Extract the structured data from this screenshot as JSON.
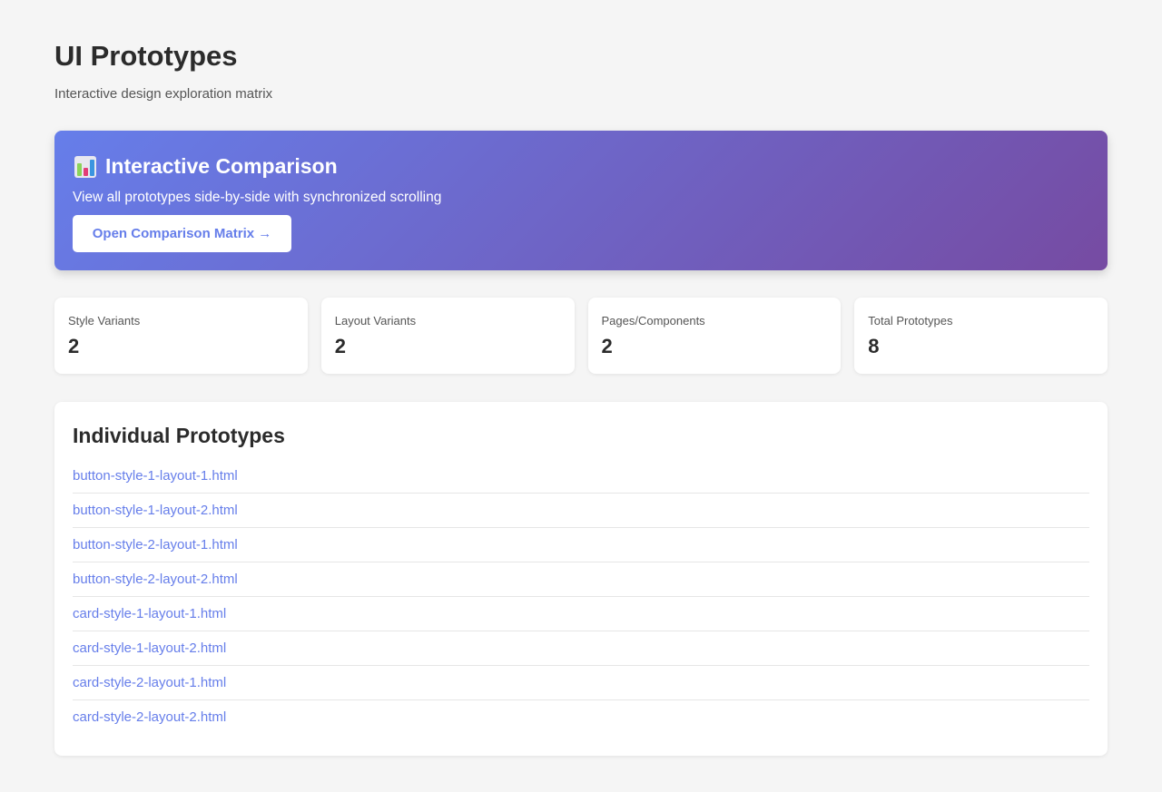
{
  "header": {
    "title": "UI Prototypes",
    "subtitle": "Interactive design exploration matrix"
  },
  "banner": {
    "icon": "bar-chart-icon",
    "title": "Interactive Comparison",
    "description": "View all prototypes side-by-side with synchronized scrolling",
    "button_label": "Open Comparison Matrix →",
    "gradient": [
      "#667eea",
      "#764ba2"
    ]
  },
  "stats": [
    {
      "label": "Style Variants",
      "value": "2"
    },
    {
      "label": "Layout Variants",
      "value": "2"
    },
    {
      "label": "Pages/Components",
      "value": "2"
    },
    {
      "label": "Total Prototypes",
      "value": "8"
    }
  ],
  "prototypes": {
    "title": "Individual Prototypes",
    "items": [
      "button-style-1-layout-1.html",
      "button-style-1-layout-2.html",
      "button-style-2-layout-1.html",
      "button-style-2-layout-2.html",
      "card-style-1-layout-1.html",
      "card-style-1-layout-2.html",
      "card-style-2-layout-1.html",
      "card-style-2-layout-2.html"
    ]
  },
  "colors": {
    "link": "#667eea",
    "background": "#f5f5f5"
  }
}
